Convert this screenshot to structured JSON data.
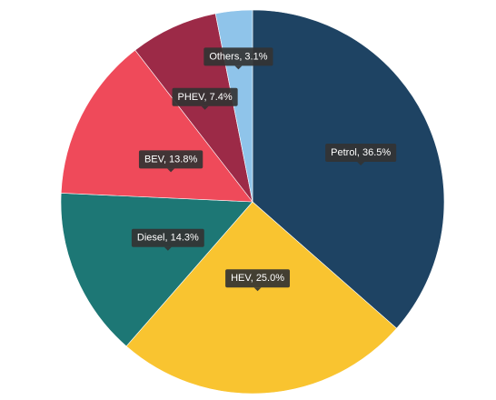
{
  "chart_data": {
    "type": "pie",
    "start_angle_deg": 0,
    "direction": "clockwise",
    "legend": "none",
    "slices": [
      {
        "label": "Petrol, 36.5%",
        "value": 36.5,
        "color": "#1e4363"
      },
      {
        "label": "HEV, 25.0%",
        "value": 25.0,
        "color": "#f9c430"
      },
      {
        "label": "Diesel, 14.3%",
        "value": 14.3,
        "color": "#1d7775"
      },
      {
        "label": "BEV, 13.8%",
        "value": 13.8,
        "color": "#ef4a5a"
      },
      {
        "label": "PHEV, 7.4%",
        "value": 7.4,
        "color": "#9c2a47"
      },
      {
        "label": "Others, 3.1%",
        "value": 3.1,
        "color": "#8fc4ea"
      }
    ]
  }
}
